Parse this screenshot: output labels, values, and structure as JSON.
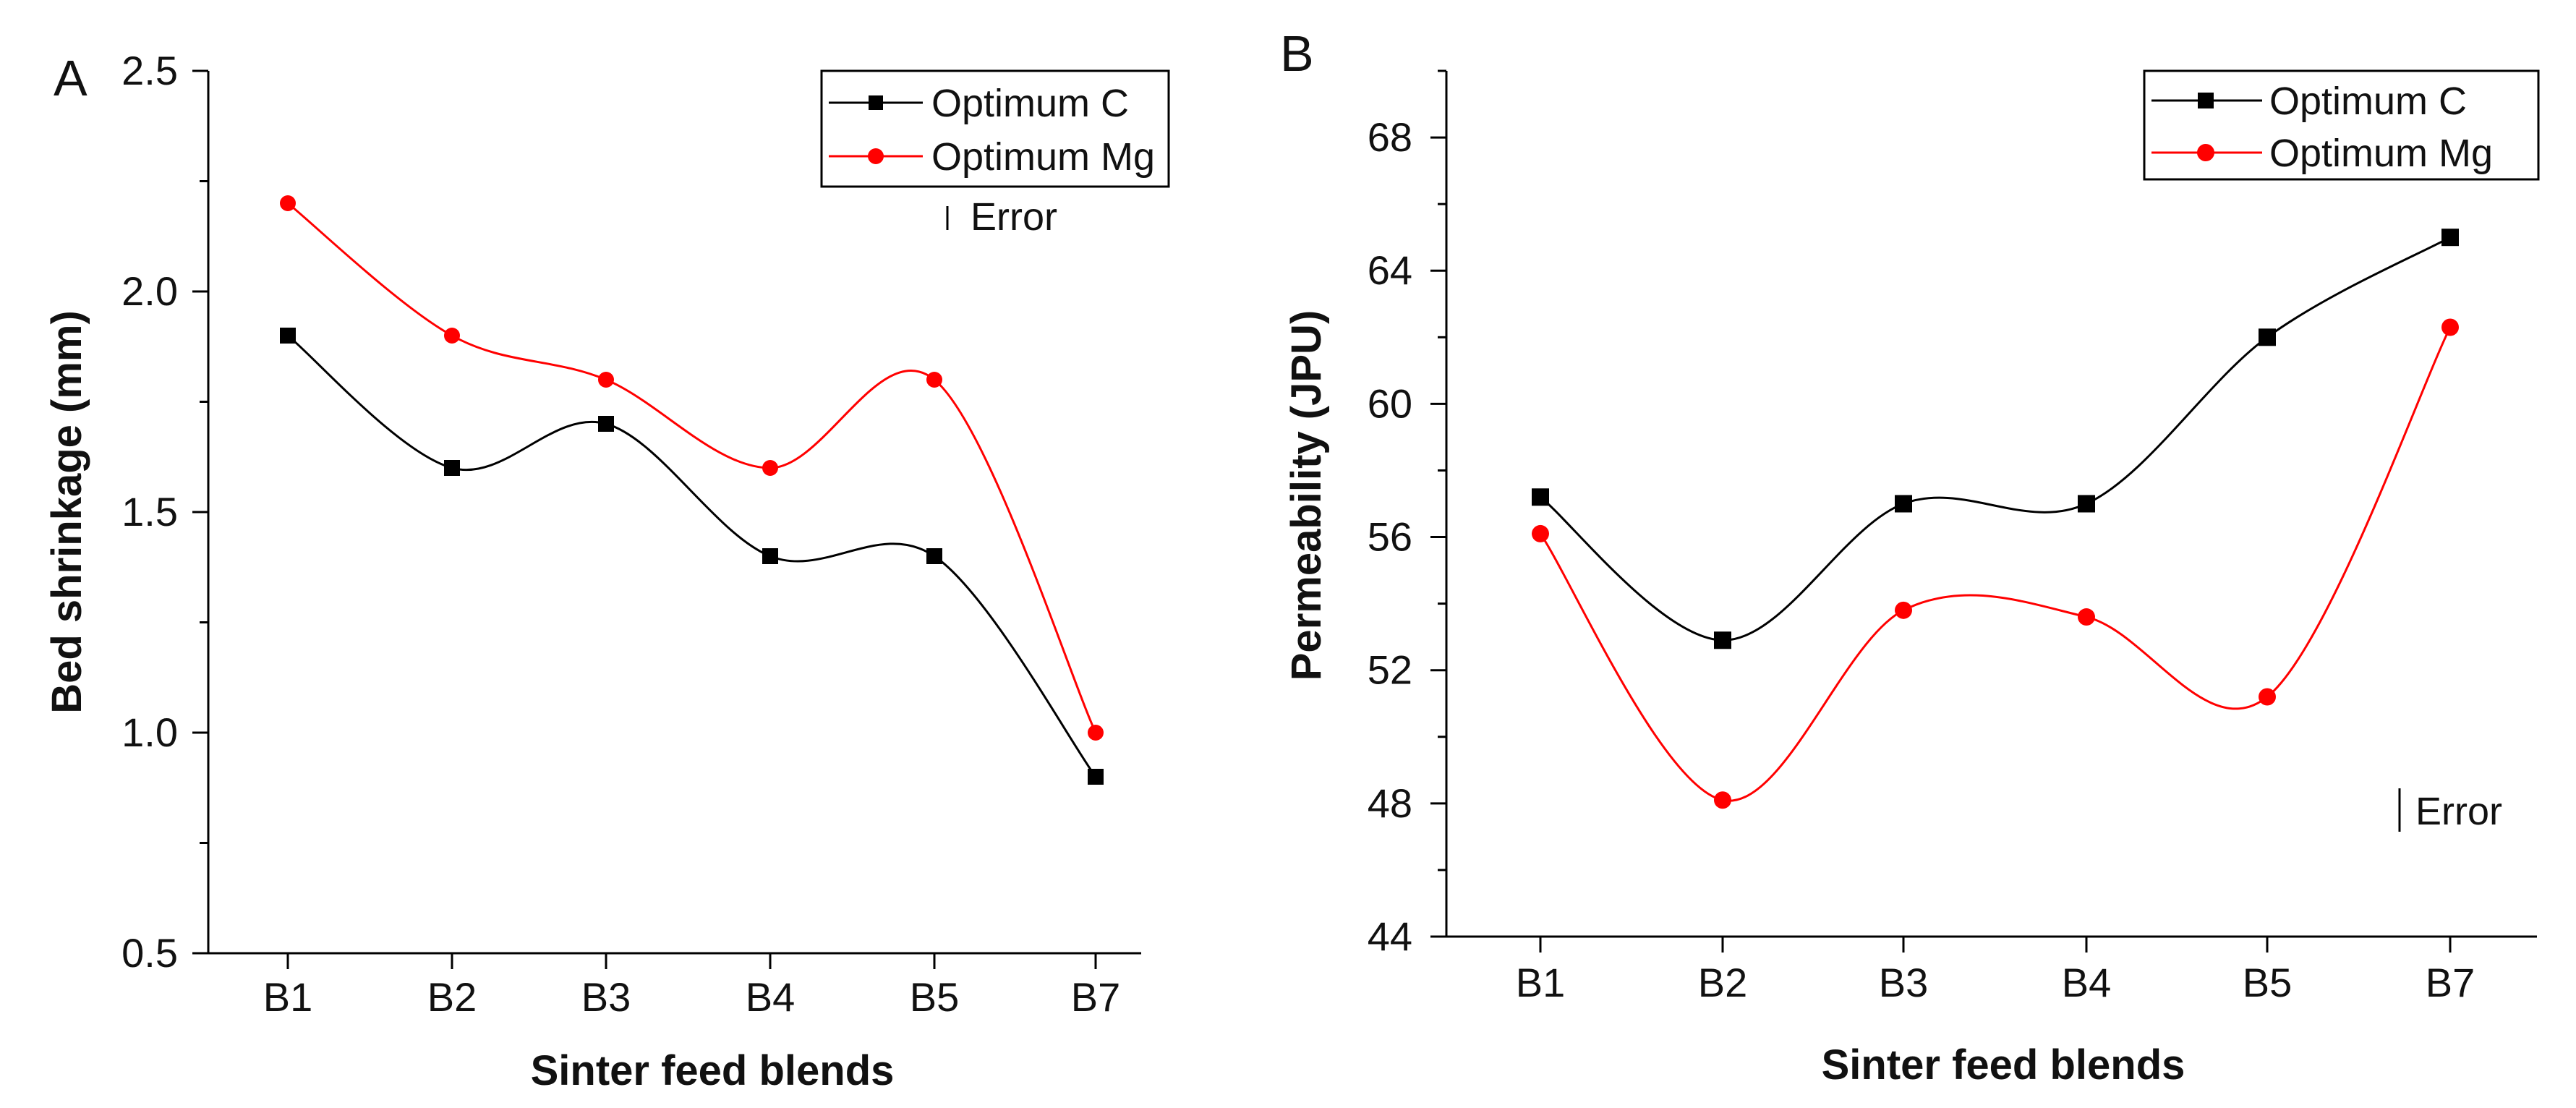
{
  "chart_data": [
    {
      "type": "line",
      "panel_label": "A",
      "categories": [
        "B1",
        "B2",
        "B3",
        "B4",
        "B5",
        "B7"
      ],
      "series": [
        {
          "name": "Optimum C",
          "color": "#000000",
          "marker": "square",
          "values": [
            1.9,
            1.6,
            1.7,
            1.4,
            1.4,
            0.9
          ]
        },
        {
          "name": "Optimum Mg",
          "color": "#ff0000",
          "marker": "circle",
          "values": [
            2.2,
            1.9,
            1.8,
            1.6,
            1.8,
            1.0
          ]
        }
      ],
      "xlabel": "Sinter feed blends",
      "ylabel": "Bed shrinkage (mm)",
      "ylim": [
        0.5,
        2.5
      ],
      "yticks": [
        0.5,
        1.0,
        1.5,
        2.0,
        2.5
      ],
      "ytick_labels": [
        "0.5",
        "1.0",
        "1.5",
        "2.0",
        "2.5"
      ],
      "error_label": "Error",
      "legend_position": "top-right"
    },
    {
      "type": "line",
      "panel_label": "B",
      "categories": [
        "B1",
        "B2",
        "B3",
        "B4",
        "B5",
        "B7"
      ],
      "series": [
        {
          "name": "Optimum C",
          "color": "#000000",
          "marker": "square",
          "values": [
            57.2,
            52.9,
            57.0,
            57.0,
            62.0,
            65.0
          ]
        },
        {
          "name": "Optimum Mg",
          "color": "#ff0000",
          "marker": "circle",
          "values": [
            56.1,
            48.1,
            53.8,
            53.6,
            51.2,
            62.3
          ]
        }
      ],
      "xlabel": "Sinter feed blends",
      "ylabel": "Permeability (JPU)",
      "ylim": [
        44,
        70
      ],
      "yticks": [
        44,
        48,
        52,
        56,
        60,
        64,
        68
      ],
      "ytick_labels": [
        "44",
        "48",
        "52",
        "56",
        "60",
        "64",
        "68"
      ],
      "error_label": "Error",
      "legend_position": "top-right"
    }
  ]
}
